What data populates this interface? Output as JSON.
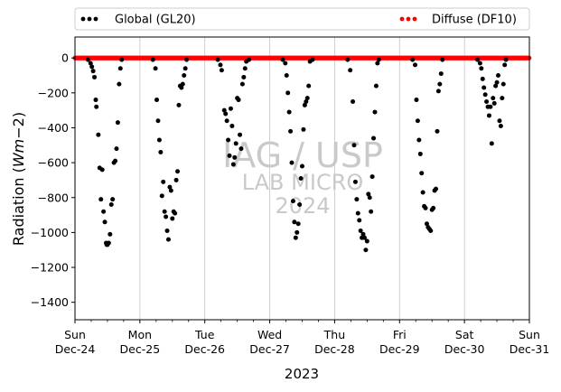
{
  "chart_data": {
    "type": "scatter",
    "ylabel_parts": [
      "Radiation (",
      "Wm",
      "−",
      "2",
      ")"
    ],
    "xlabel": "2023",
    "ylim": [
      -1500,
      120
    ],
    "xlim": [
      0,
      7
    ],
    "grid": "vertical",
    "legend_position": "top",
    "yticks": [
      0,
      -200,
      -400,
      -600,
      -800,
      -1000,
      -1200,
      -1400
    ],
    "ytick_labels": [
      "0",
      "−200",
      "−400",
      "−600",
      "−800",
      "−1000",
      "−1200",
      "−1400"
    ],
    "xticks": [
      {
        "day": "Sun",
        "date": "Dec-24"
      },
      {
        "day": "Mon",
        "date": "Dec-25"
      },
      {
        "day": "Tue",
        "date": "Dec-26"
      },
      {
        "day": "Wed",
        "date": "Dec-27"
      },
      {
        "day": "Thu",
        "date": "Dec-28"
      },
      {
        "day": "Fri",
        "date": "Dec-29"
      },
      {
        "day": "Sat",
        "date": "Dec-30"
      },
      {
        "day": "Sun",
        "date": "Dec-31"
      }
    ],
    "watermark": [
      "IAG / USP",
      "LAB MICRO",
      "2024"
    ],
    "series": [
      {
        "name": "Global (GL20)",
        "color": "#000000",
        "x_unit": "days since Dec-24 00:00",
        "points": [
          [
            0.2,
            -10
          ],
          [
            0.24,
            -30
          ],
          [
            0.26,
            -50
          ],
          [
            0.28,
            -75
          ],
          [
            0.3,
            -110
          ],
          [
            0.32,
            -240
          ],
          [
            0.33,
            -280
          ],
          [
            0.36,
            -440
          ],
          [
            0.38,
            -630
          ],
          [
            0.4,
            -810
          ],
          [
            0.42,
            -640
          ],
          [
            0.44,
            -880
          ],
          [
            0.46,
            -940
          ],
          [
            0.48,
            -1060
          ],
          [
            0.49,
            -1070
          ],
          [
            0.5,
            -1070
          ],
          [
            0.52,
            -1060
          ],
          [
            0.54,
            -1010
          ],
          [
            0.56,
            -840
          ],
          [
            0.58,
            -810
          ],
          [
            0.6,
            -600
          ],
          [
            0.62,
            -590
          ],
          [
            0.64,
            -520
          ],
          [
            0.66,
            -370
          ],
          [
            0.68,
            -150
          ],
          [
            0.7,
            -60
          ],
          [
            0.72,
            -10
          ],
          [
            1.2,
            -10
          ],
          [
            1.24,
            -60
          ],
          [
            1.26,
            -240
          ],
          [
            1.28,
            -360
          ],
          [
            1.3,
            -470
          ],
          [
            1.32,
            -540
          ],
          [
            1.34,
            -790
          ],
          [
            1.36,
            -710
          ],
          [
            1.38,
            -880
          ],
          [
            1.4,
            -910
          ],
          [
            1.42,
            -990
          ],
          [
            1.44,
            -1040
          ],
          [
            1.46,
            -740
          ],
          [
            1.48,
            -760
          ],
          [
            1.5,
            -920
          ],
          [
            1.52,
            -880
          ],
          [
            1.54,
            -890
          ],
          [
            1.56,
            -700
          ],
          [
            1.58,
            -650
          ],
          [
            1.6,
            -270
          ],
          [
            1.62,
            -160
          ],
          [
            1.64,
            -170
          ],
          [
            1.66,
            -150
          ],
          [
            1.68,
            -100
          ],
          [
            1.7,
            -60
          ],
          [
            1.72,
            -10
          ],
          [
            2.2,
            -10
          ],
          [
            2.24,
            -40
          ],
          [
            2.26,
            -70
          ],
          [
            2.3,
            -300
          ],
          [
            2.32,
            -320
          ],
          [
            2.34,
            -360
          ],
          [
            2.36,
            -470
          ],
          [
            2.38,
            -560
          ],
          [
            2.4,
            -290
          ],
          [
            2.42,
            -390
          ],
          [
            2.44,
            -610
          ],
          [
            2.46,
            -570
          ],
          [
            2.48,
            -490
          ],
          [
            2.5,
            -230
          ],
          [
            2.52,
            -240
          ],
          [
            2.54,
            -440
          ],
          [
            2.56,
            -520
          ],
          [
            2.58,
            -150
          ],
          [
            2.6,
            -110
          ],
          [
            2.62,
            -60
          ],
          [
            2.64,
            -20
          ],
          [
            2.68,
            -10
          ],
          [
            3.2,
            -10
          ],
          [
            3.24,
            -30
          ],
          [
            3.26,
            -100
          ],
          [
            3.28,
            -200
          ],
          [
            3.3,
            -310
          ],
          [
            3.32,
            -420
          ],
          [
            3.34,
            -600
          ],
          [
            3.36,
            -820
          ],
          [
            3.38,
            -940
          ],
          [
            3.4,
            -1030
          ],
          [
            3.42,
            -1000
          ],
          [
            3.44,
            -950
          ],
          [
            3.46,
            -840
          ],
          [
            3.48,
            -690
          ],
          [
            3.5,
            -620
          ],
          [
            3.52,
            -410
          ],
          [
            3.54,
            -270
          ],
          [
            3.56,
            -250
          ],
          [
            3.58,
            -230
          ],
          [
            3.6,
            -160
          ],
          [
            3.62,
            -20
          ],
          [
            3.66,
            -10
          ],
          [
            4.2,
            -10
          ],
          [
            4.24,
            -70
          ],
          [
            4.28,
            -250
          ],
          [
            4.3,
            -500
          ],
          [
            4.32,
            -710
          ],
          [
            4.34,
            -810
          ],
          [
            4.36,
            -890
          ],
          [
            4.38,
            -930
          ],
          [
            4.4,
            -990
          ],
          [
            4.42,
            -1030
          ],
          [
            4.44,
            -1010
          ],
          [
            4.46,
            -1030
          ],
          [
            4.48,
            -1100
          ],
          [
            4.5,
            -1050
          ],
          [
            4.52,
            -780
          ],
          [
            4.54,
            -800
          ],
          [
            4.56,
            -880
          ],
          [
            4.58,
            -680
          ],
          [
            4.6,
            -460
          ],
          [
            4.62,
            -310
          ],
          [
            4.64,
            -160
          ],
          [
            4.66,
            -30
          ],
          [
            4.68,
            -10
          ],
          [
            5.2,
            -10
          ],
          [
            5.24,
            -40
          ],
          [
            5.26,
            -240
          ],
          [
            5.28,
            -360
          ],
          [
            5.3,
            -470
          ],
          [
            5.32,
            -550
          ],
          [
            5.34,
            -660
          ],
          [
            5.36,
            -770
          ],
          [
            5.38,
            -850
          ],
          [
            5.4,
            -860
          ],
          [
            5.42,
            -950
          ],
          [
            5.44,
            -970
          ],
          [
            5.46,
            -980
          ],
          [
            5.48,
            -990
          ],
          [
            5.5,
            -870
          ],
          [
            5.52,
            -860
          ],
          [
            5.54,
            -760
          ],
          [
            5.56,
            -750
          ],
          [
            5.58,
            -420
          ],
          [
            5.6,
            -190
          ],
          [
            5.62,
            -150
          ],
          [
            5.64,
            -90
          ],
          [
            5.66,
            -10
          ],
          [
            6.2,
            -10
          ],
          [
            6.24,
            -30
          ],
          [
            6.26,
            -60
          ],
          [
            6.28,
            -120
          ],
          [
            6.3,
            -170
          ],
          [
            6.32,
            -210
          ],
          [
            6.34,
            -250
          ],
          [
            6.36,
            -280
          ],
          [
            6.38,
            -330
          ],
          [
            6.4,
            -280
          ],
          [
            6.42,
            -490
          ],
          [
            6.44,
            -230
          ],
          [
            6.46,
            -260
          ],
          [
            6.48,
            -160
          ],
          [
            6.5,
            -140
          ],
          [
            6.52,
            -100
          ],
          [
            6.54,
            -360
          ],
          [
            6.56,
            -390
          ],
          [
            6.58,
            -230
          ],
          [
            6.6,
            -150
          ],
          [
            6.62,
            -40
          ],
          [
            6.64,
            -10
          ]
        ]
      },
      {
        "name": "Diffuse (DF10)",
        "color": "#ff0000",
        "x_unit": "days since Dec-24 00:00",
        "constant_value": 0,
        "sample_step": 0.012
      }
    ]
  }
}
